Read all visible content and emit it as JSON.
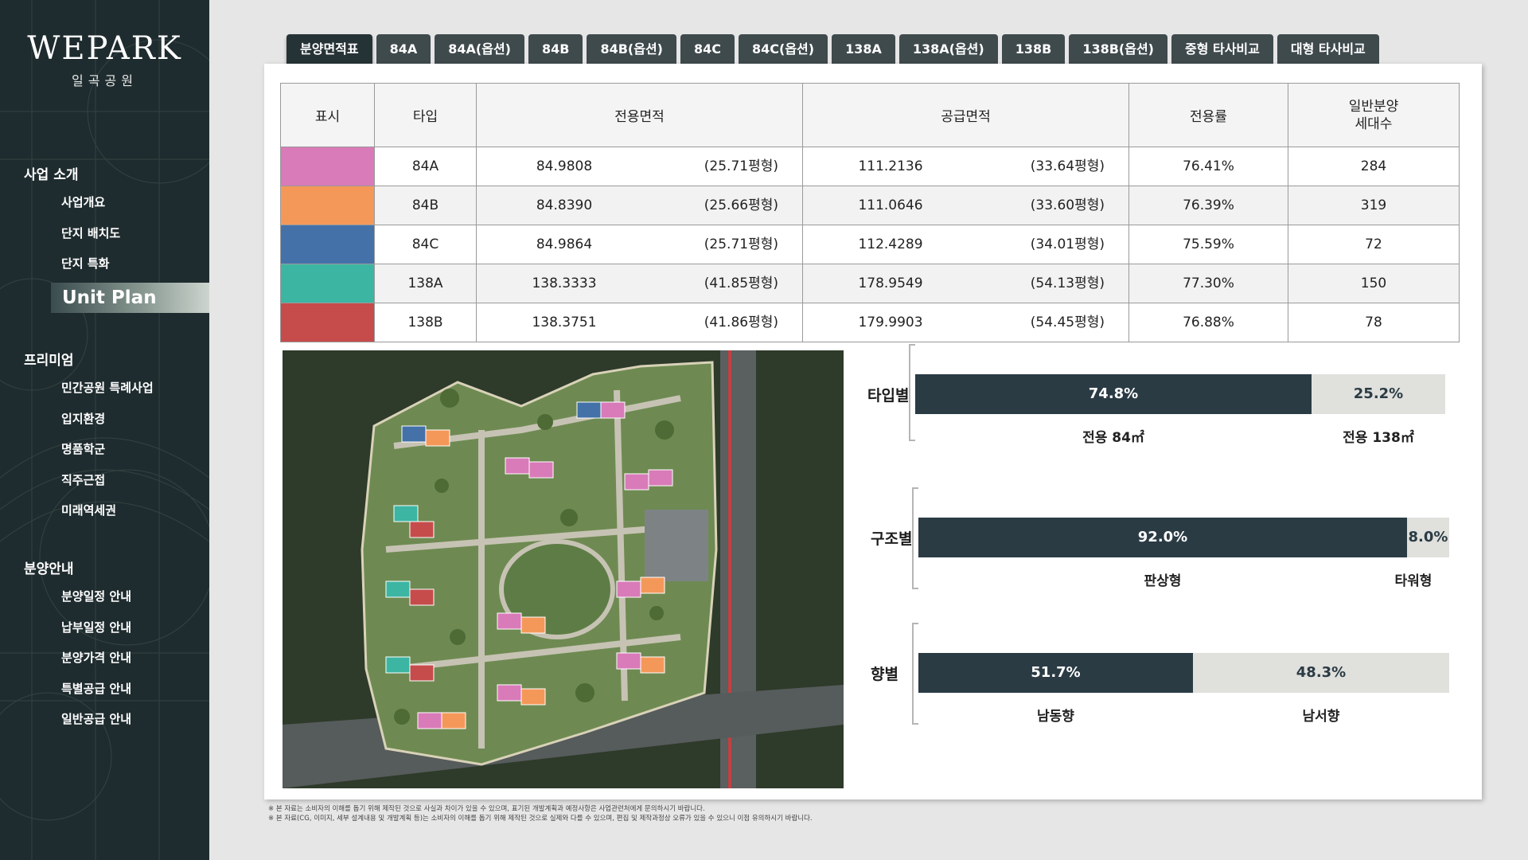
{
  "brand": {
    "name": "WEPARK",
    "sub": "일곡공원"
  },
  "sidebar": {
    "groups": [
      {
        "title": "사업 소개",
        "items": [
          "사업개요",
          "단지 배치도",
          "단지 특화",
          "Unit Plan"
        ]
      },
      {
        "title": "프리미엄",
        "items": [
          "민간공원 특례사업",
          "입지환경",
          "명품학군",
          "직주근접",
          "미래역세권"
        ]
      },
      {
        "title": "분양안내",
        "items": [
          "분양일정 안내",
          "납부일정 안내",
          "분양가격 안내",
          "특별공급 안내",
          "일반공급 안내"
        ]
      }
    ],
    "active": "Unit Plan"
  },
  "tabs": [
    "분양면적표",
    "84A",
    "84A(옵션)",
    "84B",
    "84B(옵션)",
    "84C",
    "84C(옵션)",
    "138A",
    "138A(옵션)",
    "138B",
    "138B(옵션)",
    "중형 타사비교",
    "대형 타사비교"
  ],
  "active_tab": "분양면적표",
  "table": {
    "headers": {
      "mark": "표시",
      "type": "타입",
      "exclusive": "전용면적",
      "supply": "공급면적",
      "ratio": "전용률",
      "households": "일반분양\n세대수"
    },
    "rows": [
      {
        "color": "#d97bb8",
        "type": "84A",
        "exclusive": "84.9808",
        "exclusive_py": "(25.71평형)",
        "supply": "111.2136",
        "supply_py": "(33.64평형)",
        "ratio": "76.41%",
        "households": "284"
      },
      {
        "color": "#f4985a",
        "type": "84B",
        "exclusive": "84.8390",
        "exclusive_py": "(25.66평형)",
        "supply": "111.0646",
        "supply_py": "(33.60평형)",
        "ratio": "76.39%",
        "households": "319"
      },
      {
        "color": "#4471a8",
        "type": "84C",
        "exclusive": "84.9864",
        "exclusive_py": "(25.71평형)",
        "supply": "112.4289",
        "supply_py": "(34.01평형)",
        "ratio": "75.59%",
        "households": "72"
      },
      {
        "color": "#3db5a3",
        "type": "138A",
        "exclusive": "138.3333",
        "exclusive_py": "(41.85평형)",
        "supply": "178.9549",
        "supply_py": "(54.13평형)",
        "ratio": "77.30%",
        "households": "150"
      },
      {
        "color": "#c64c4c",
        "type": "138B",
        "exclusive": "138.3751",
        "exclusive_py": "(41.86평형)",
        "supply": "179.9903",
        "supply_py": "(54.45평형)",
        "ratio": "76.88%",
        "households": "78"
      }
    ]
  },
  "stats": [
    {
      "title": "타입별",
      "segments": [
        {
          "value": "74.8%",
          "label": "전용 84㎡",
          "share": 0.748
        },
        {
          "value": "25.2%",
          "label": "전용 138㎡",
          "share": 0.252
        }
      ]
    },
    {
      "title": "구조별",
      "segments": [
        {
          "value": "92.0%",
          "label": "판상형",
          "share": 0.92
        },
        {
          "value": "8.0%",
          "label": "타워형",
          "share": 0.08
        }
      ]
    },
    {
      "title": "향별",
      "segments": [
        {
          "value": "51.7%",
          "label": "남동향",
          "share": 0.517
        },
        {
          "value": "48.3%",
          "label": "남서향",
          "share": 0.483
        }
      ]
    }
  ],
  "notes": [
    "※ 본 자료는 소비자의 이해를 돕기 위해 제작된 것으로 사실과 차이가 있을 수 있으며, 표기된 개발계획과 예정사항은 사업관련처에게 문의하시기 바랍니다.",
    "※ 본 자료(CG, 이미지, 세부 설계내용 및 개발계획 등)는 소비자의 이해를 돕기 위해 제작된 것으로 실제와 다를 수 있으며, 편집 및 제작과정상 오류가 있을 수 있으니 이점 유의하시기 바랍니다."
  ]
}
